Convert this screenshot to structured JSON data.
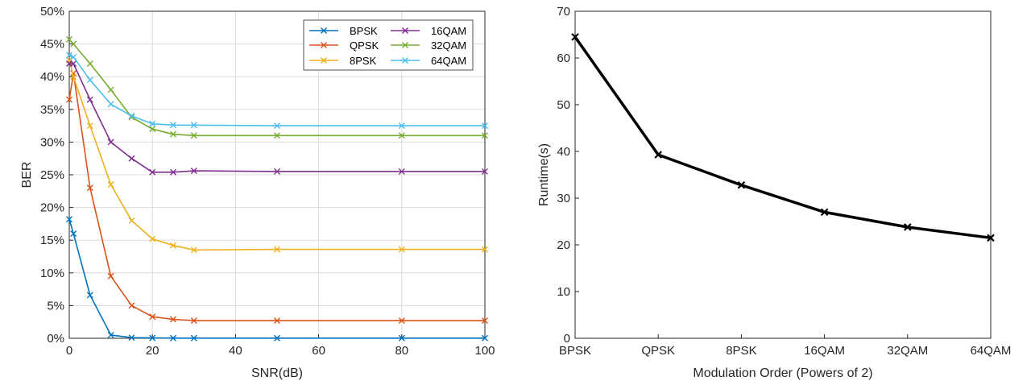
{
  "chart_data": [
    {
      "type": "line",
      "title": "",
      "xlabel": "SNR(dB)",
      "ylabel": "BER",
      "xlim": [
        0,
        100
      ],
      "ylim": [
        0,
        50
      ],
      "xticks": [
        "0",
        "20",
        "40",
        "60",
        "80",
        "100"
      ],
      "yticks": [
        "0%",
        "5%",
        "10%",
        "15%",
        "20%",
        "25%",
        "30%",
        "35%",
        "40%",
        "45%",
        "50%"
      ],
      "grid": true,
      "legend_position": "top-right",
      "x": [
        0,
        1,
        5,
        10,
        15,
        20,
        25,
        30,
        50,
        80,
        100
      ],
      "series": [
        {
          "name": "BPSK",
          "color": "#0072BD",
          "values": [
            18.2,
            16.0,
            6.6,
            0.5,
            0.1,
            0.05,
            0.03,
            0.03,
            0.03,
            0.03,
            0.03
          ]
        },
        {
          "name": "QPSK",
          "color": "#D95319",
          "values": [
            36.5,
            40.5,
            23.0,
            9.5,
            5.0,
            3.3,
            2.9,
            2.7,
            2.7,
            2.7,
            2.7
          ]
        },
        {
          "name": "8PSK",
          "color": "#EDB120",
          "values": [
            42.5,
            40.0,
            32.5,
            23.5,
            18.0,
            15.2,
            14.2,
            13.5,
            13.6,
            13.6,
            13.6
          ]
        },
        {
          "name": "16QAM",
          "color": "#7E2F8E",
          "values": [
            42.0,
            42.0,
            36.5,
            30.0,
            27.5,
            25.4,
            25.4,
            25.6,
            25.5,
            25.5,
            25.5
          ]
        },
        {
          "name": "32QAM",
          "color": "#77AC30",
          "values": [
            45.7,
            45.0,
            42.0,
            38.0,
            33.8,
            32.0,
            31.2,
            31.0,
            31.0,
            31.0,
            31.0
          ]
        },
        {
          "name": "64QAM",
          "color": "#4DBEEE",
          "values": [
            43.3,
            43.0,
            39.5,
            35.8,
            34.0,
            32.8,
            32.6,
            32.6,
            32.5,
            32.5,
            32.5
          ]
        }
      ]
    },
    {
      "type": "line",
      "title": "",
      "xlabel": "Modulation Order (Powers of 2)",
      "ylabel": "Runtime(s)",
      "categories": [
        "BPSK",
        "QPSK",
        "8PSK",
        "16QAM",
        "32QAM",
        "64QAM"
      ],
      "ylim": [
        0,
        70
      ],
      "yticks": [
        "0",
        "10",
        "20",
        "30",
        "40",
        "50",
        "60",
        "70"
      ],
      "grid": false,
      "series": [
        {
          "color": "#000000",
          "values": [
            64.5,
            39.3,
            32.8,
            27.0,
            23.8,
            21.5
          ]
        }
      ]
    }
  ]
}
